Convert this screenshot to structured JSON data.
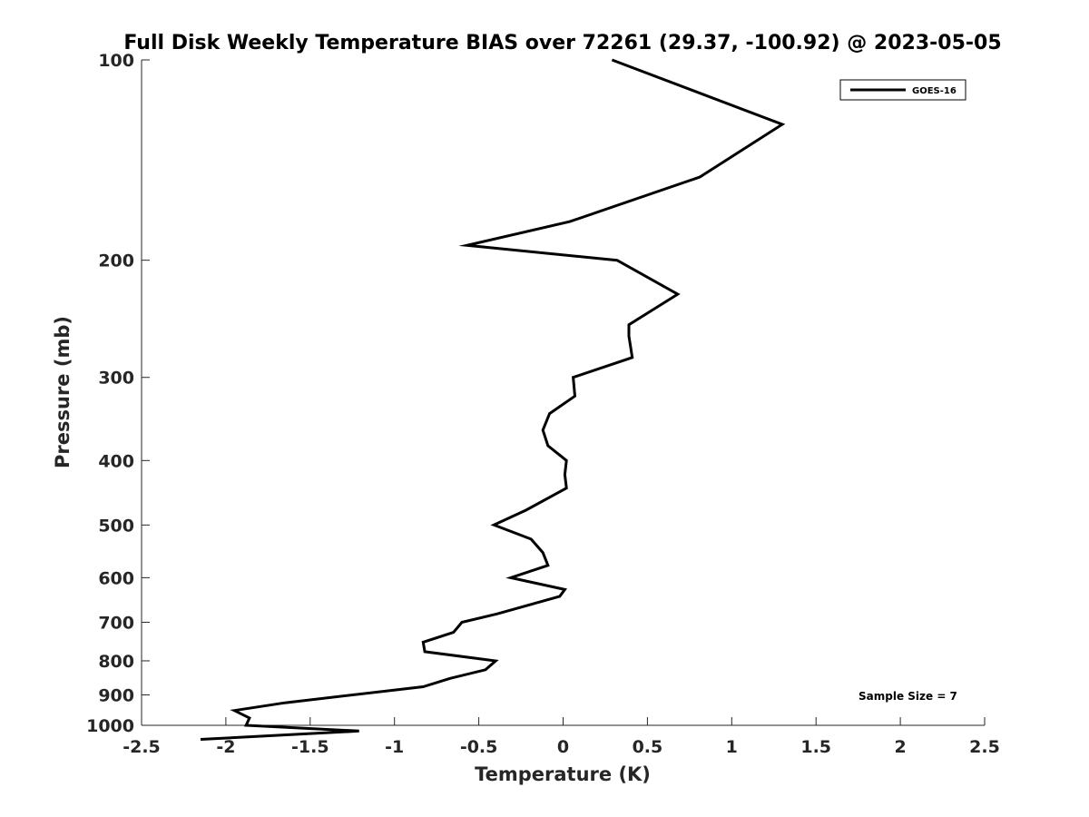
{
  "chart_data": {
    "type": "line",
    "title": "Full Disk Weekly Temperature BIAS over 72261 (29.37, -100.92) @ 2023-05-05",
    "xlabel": "Temperature (K)",
    "ylabel": "Pressure (mb)",
    "xlim": [
      -2.5,
      2.5
    ],
    "ylim": [
      100,
      1000
    ],
    "yscale": "log",
    "y_reversed": true,
    "x_ticks": [
      -2.5,
      -2,
      -1.5,
      -1,
      -0.5,
      0,
      0.5,
      1,
      1.5,
      2,
      2.5
    ],
    "x_tick_labels": [
      "-2.5",
      "-2",
      "-1.5",
      "-1",
      "-0.5",
      "0",
      "0.5",
      "1",
      "1.5",
      "2",
      "2.5"
    ],
    "y_ticks": [
      100,
      200,
      300,
      400,
      500,
      600,
      700,
      800,
      900,
      1000
    ],
    "y_tick_labels": [
      "100",
      "200",
      "300",
      "400",
      "500",
      "600",
      "700",
      "800",
      "900",
      "1000"
    ],
    "grid": false,
    "legend_position": "top-right",
    "series": [
      {
        "name": "GOES-16",
        "color": "#000000",
        "points": [
          {
            "x": 0.29,
            "y": 100
          },
          {
            "x": 1.3,
            "y": 125
          },
          {
            "x": 0.81,
            "y": 150
          },
          {
            "x": 0.04,
            "y": 175
          },
          {
            "x": -0.57,
            "y": 190
          },
          {
            "x": 0.32,
            "y": 200
          },
          {
            "x": 0.68,
            "y": 225
          },
          {
            "x": 0.39,
            "y": 250
          },
          {
            "x": 0.39,
            "y": 260
          },
          {
            "x": 0.41,
            "y": 280
          },
          {
            "x": 0.06,
            "y": 300
          },
          {
            "x": 0.07,
            "y": 320
          },
          {
            "x": -0.08,
            "y": 340
          },
          {
            "x": -0.12,
            "y": 360
          },
          {
            "x": -0.09,
            "y": 380
          },
          {
            "x": 0.02,
            "y": 400
          },
          {
            "x": 0.01,
            "y": 420
          },
          {
            "x": 0.02,
            "y": 440
          },
          {
            "x": -0.22,
            "y": 475
          },
          {
            "x": -0.41,
            "y": 500
          },
          {
            "x": -0.19,
            "y": 525
          },
          {
            "x": -0.12,
            "y": 550
          },
          {
            "x": -0.09,
            "y": 575
          },
          {
            "x": -0.31,
            "y": 600
          },
          {
            "x": 0.01,
            "y": 625
          },
          {
            "x": -0.02,
            "y": 640
          },
          {
            "x": -0.39,
            "y": 680
          },
          {
            "x": -0.6,
            "y": 700
          },
          {
            "x": -0.65,
            "y": 725
          },
          {
            "x": -0.83,
            "y": 750
          },
          {
            "x": -0.82,
            "y": 775
          },
          {
            "x": -0.4,
            "y": 800
          },
          {
            "x": -0.46,
            "y": 825
          },
          {
            "x": -0.67,
            "y": 850
          },
          {
            "x": -0.83,
            "y": 875
          },
          {
            "x": -1.65,
            "y": 925
          },
          {
            "x": -1.95,
            "y": 950
          },
          {
            "x": -1.86,
            "y": 975
          },
          {
            "x": -1.88,
            "y": 1000
          },
          {
            "x": -1.21,
            "y": 1020
          },
          {
            "x": -2.15,
            "y": 1050
          }
        ]
      }
    ],
    "annotations": [
      {
        "text": "Sample Size = 7",
        "position": "bottom-right"
      }
    ]
  }
}
